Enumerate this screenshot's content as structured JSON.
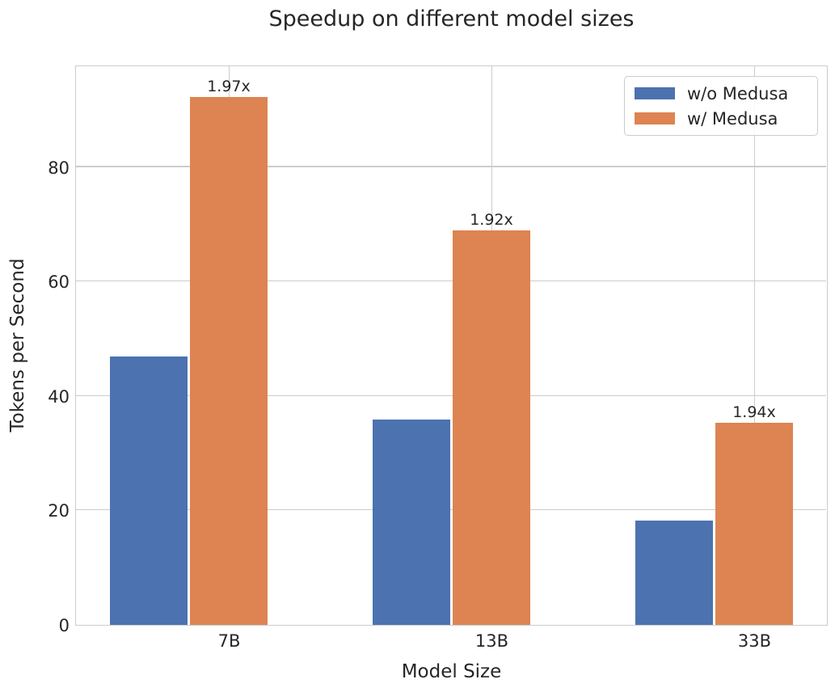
{
  "title": "Speedup on different model sizes",
  "colors": {
    "series_blue": "#4C72B0",
    "series_orange": "#DD8452",
    "grid": "#CCCCCC",
    "text": "#262626"
  },
  "chart_data": {
    "type": "bar",
    "title": "Speedup on different model sizes",
    "xlabel": "Model Size",
    "ylabel": "Tokens per Second",
    "categories": [
      "7B",
      "13B",
      "33B"
    ],
    "series": [
      {
        "name": "w/o Medusa",
        "color": "#4C72B0",
        "values": [
          46.9,
          35.9,
          18.2
        ]
      },
      {
        "name": "w/ Medusa",
        "color": "#DD8452",
        "values": [
          92.3,
          69.0,
          35.3
        ]
      }
    ],
    "annotations": [
      "1.97x",
      "1.92x",
      "1.94x"
    ],
    "yticks": [
      0,
      20,
      40,
      60,
      80
    ],
    "ylim": [
      0,
      97.5
    ],
    "grid": true,
    "legend_position": "upper right"
  }
}
